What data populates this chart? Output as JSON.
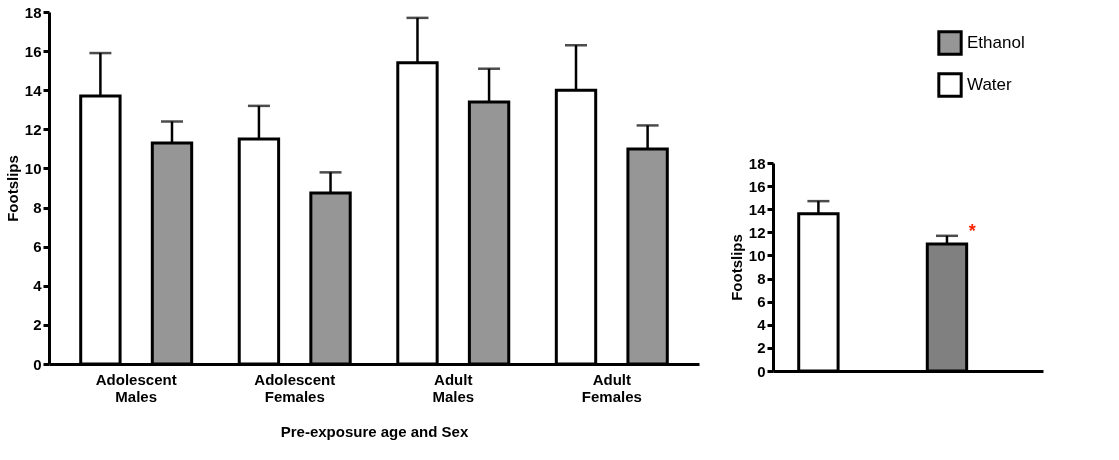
{
  "chart_data": [
    {
      "type": "bar",
      "xlabel": "Pre-exposure age and Sex",
      "ylabel": "Footslips",
      "categories": [
        "Adolescent Males",
        "Adolescent Females",
        "Adult Males",
        "Adult Females"
      ],
      "series": [
        {
          "name": "Water",
          "color": "#ffffff",
          "values": [
            13.7,
            11.5,
            15.4,
            14.0
          ],
          "errors": [
            [
              13.7,
              15.9
            ],
            [
              11.5,
              13.2
            ],
            [
              15.4,
              17.7
            ],
            [
              14.0,
              16.3
            ]
          ]
        },
        {
          "name": "Ethanol",
          "color": "#969696",
          "values": [
            11.3,
            8.75,
            13.4,
            11.0
          ],
          "errors": [
            [
              11.3,
              12.4
            ],
            [
              8.75,
              9.8
            ],
            [
              13.4,
              15.1
            ],
            [
              11.0,
              12.2
            ]
          ]
        }
      ],
      "ylim": [
        0,
        18
      ],
      "yticks": [
        0,
        2,
        4,
        6,
        8,
        10,
        12,
        14,
        16,
        18
      ],
      "grid": false,
      "legend": "top right"
    },
    {
      "type": "bar",
      "ylabel": "Footslips",
      "categories": [
        null,
        null
      ],
      "values": [
        13.6,
        11.0
      ],
      "colors": [
        "#ffffff",
        "#808080"
      ],
      "errors": [
        [
          13.6,
          14.7
        ],
        [
          11.0,
          11.7
        ]
      ],
      "annotations": [
        "*"
      ],
      "ylim": [
        0,
        18
      ],
      "yticks": [
        0,
        2,
        4,
        6,
        8,
        10,
        12,
        14,
        16,
        18
      ],
      "grid": false
    }
  ]
}
